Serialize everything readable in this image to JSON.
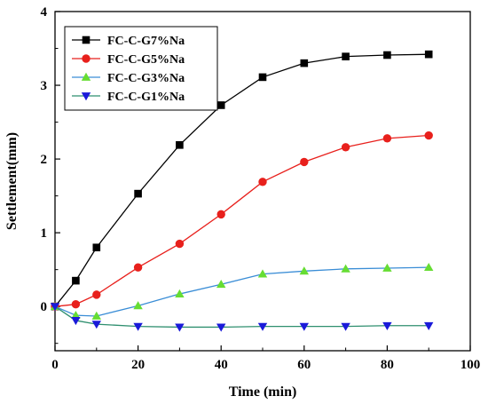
{
  "chart_data": {
    "type": "line",
    "title": "",
    "xlabel": "Time (min)",
    "ylabel": "Settlement(mm)",
    "xlim": [
      0,
      100
    ],
    "ylim": [
      -0.6,
      4
    ],
    "xticks": [
      0,
      20,
      40,
      60,
      80,
      100
    ],
    "yticks": [
      0,
      1,
      2,
      3,
      4
    ],
    "grid": false,
    "legend": "top-left",
    "series": [
      {
        "name": "FC-C-G7%Na",
        "color": "#000000",
        "marker": "square",
        "x": [
          0,
          5,
          10,
          20,
          30,
          40,
          50,
          60,
          70,
          80,
          90
        ],
        "y": [
          0,
          0.35,
          0.8,
          1.53,
          2.19,
          2.73,
          3.11,
          3.3,
          3.39,
          3.41,
          3.42
        ]
      },
      {
        "name": "FC-C-G5%Na",
        "color": "#e8201c",
        "marker": "circle",
        "x": [
          0,
          5,
          10,
          20,
          30,
          40,
          50,
          60,
          70,
          80,
          90
        ],
        "y": [
          0,
          0.03,
          0.16,
          0.53,
          0.85,
          1.25,
          1.69,
          1.96,
          2.16,
          2.28,
          2.32
        ]
      },
      {
        "name": "FC-C-G3%Na",
        "color": "#3a8dd6",
        "marker_color": "#66dd33",
        "marker": "triangle-up",
        "x": [
          0,
          5,
          10,
          20,
          30,
          40,
          50,
          60,
          70,
          80,
          90
        ],
        "y": [
          0,
          -0.12,
          -0.13,
          0.01,
          0.17,
          0.3,
          0.44,
          0.48,
          0.51,
          0.52,
          0.53
        ]
      },
      {
        "name": "FC-C-G1%Na",
        "color": "#2f8f6f",
        "marker_color": "#1a1ad9",
        "marker": "triangle-down",
        "x": [
          0,
          5,
          10,
          20,
          30,
          40,
          50,
          60,
          70,
          80,
          90
        ],
        "y": [
          0,
          -0.19,
          -0.24,
          -0.27,
          -0.28,
          -0.28,
          -0.27,
          -0.27,
          -0.27,
          -0.26,
          -0.26
        ]
      }
    ]
  }
}
